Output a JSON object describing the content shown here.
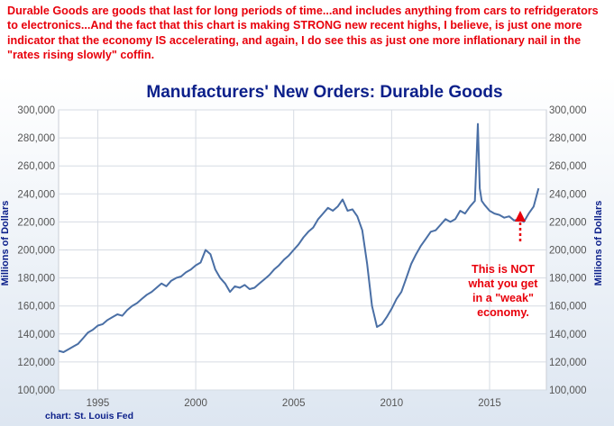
{
  "caption": "Durable Goods are goods that last for long periods of time...and includes anything from cars to refridgerators to electronics...And the fact that this chart is making STRONG new recent highs, I believe, is just one more indicator that the economy IS accelerating, and again, I do see this as just one more inflationary nail in the \"rates rising slowly\" coffin.",
  "source": "chart: St. Louis Fed",
  "annotation_lines": [
    "This is NOT",
    "what you get",
    "in a \"weak\"",
    "economy."
  ],
  "colors": {
    "line": "#4a6fa5",
    "caption": "#e8000b",
    "title": "#0b1f8a",
    "grid": "#d6dbe3",
    "arrow": "#e8000b"
  },
  "chart_data": {
    "type": "line",
    "title": "Manufacturers' New Orders: Durable Goods",
    "ylabel": "Millions of Dollars",
    "ylabel_right": "Millions of Dollars",
    "xlim": [
      1993.0,
      2017.9
    ],
    "ylim": [
      100000,
      300000
    ],
    "x_ticks": [
      1995,
      2000,
      2005,
      2010,
      2015
    ],
    "x_tick_labels": [
      "1995",
      "2000",
      "2005",
      "2010",
      "2015"
    ],
    "y_ticks": [
      100000,
      120000,
      140000,
      160000,
      180000,
      200000,
      220000,
      240000,
      260000,
      280000,
      300000
    ],
    "y_tick_labels": [
      "100,000",
      "120,000",
      "140,000",
      "160,000",
      "180,000",
      "200,000",
      "220,000",
      "240,000",
      "260,000",
      "280,000",
      "300,000"
    ],
    "grid": true,
    "series": [
      {
        "x": [
          1993.0,
          1993.25,
          1993.5,
          1993.75,
          1994.0,
          1994.25,
          1994.5,
          1994.75,
          1995.0,
          1995.25,
          1995.5,
          1995.75,
          1996.0,
          1996.25,
          1996.5,
          1996.75,
          1997.0,
          1997.25,
          1997.5,
          1997.75,
          1998.0,
          1998.25,
          1998.5,
          1998.75,
          1999.0,
          1999.25,
          1999.5,
          1999.75,
          2000.0,
          2000.25,
          2000.5,
          2000.75,
          2001.0,
          2001.25,
          2001.5,
          2001.75,
          2002.0,
          2002.25,
          2002.5,
          2002.75,
          2003.0,
          2003.25,
          2003.5,
          2003.75,
          2004.0,
          2004.25,
          2004.5,
          2004.75,
          2005.0,
          2005.25,
          2005.5,
          2005.75,
          2006.0,
          2006.25,
          2006.5,
          2006.75,
          2007.0,
          2007.25,
          2007.5,
          2007.75,
          2008.0,
          2008.25,
          2008.5,
          2008.75,
          2009.0,
          2009.25,
          2009.5,
          2009.75,
          2010.0,
          2010.25,
          2010.5,
          2010.75,
          2011.0,
          2011.25,
          2011.5,
          2011.75,
          2012.0,
          2012.25,
          2012.5,
          2012.75,
          2013.0,
          2013.25,
          2013.5,
          2013.75,
          2014.0,
          2014.25,
          2014.4,
          2014.5,
          2014.6,
          2014.75,
          2015.0,
          2015.25,
          2015.5,
          2015.75,
          2016.0,
          2016.25,
          2016.5,
          2016.75,
          2017.0,
          2017.25,
          2017.5
        ],
        "y": [
          128000,
          127000,
          129000,
          131000,
          133000,
          137000,
          141000,
          143000,
          146000,
          147000,
          150000,
          152000,
          154000,
          153000,
          157000,
          160000,
          162000,
          165000,
          168000,
          170000,
          173000,
          176000,
          174000,
          178000,
          180000,
          181000,
          184000,
          186000,
          189000,
          191000,
          200000,
          197000,
          186000,
          180000,
          176000,
          170000,
          174000,
          173000,
          175000,
          172000,
          173000,
          176000,
          179000,
          182000,
          186000,
          189000,
          193000,
          196000,
          200000,
          204000,
          209000,
          213000,
          216000,
          222000,
          226000,
          230000,
          228000,
          231000,
          236000,
          228000,
          229000,
          224000,
          214000,
          190000,
          160000,
          145000,
          147000,
          152000,
          158000,
          165000,
          170000,
          180000,
          190000,
          197000,
          203000,
          208000,
          213000,
          214000,
          218000,
          222000,
          220000,
          222000,
          228000,
          226000,
          231000,
          235000,
          290000,
          244000,
          235000,
          232000,
          228000,
          226000,
          225000,
          223000,
          224000,
          221000,
          222000,
          220000,
          226000,
          231000,
          244000
        ]
      }
    ]
  }
}
